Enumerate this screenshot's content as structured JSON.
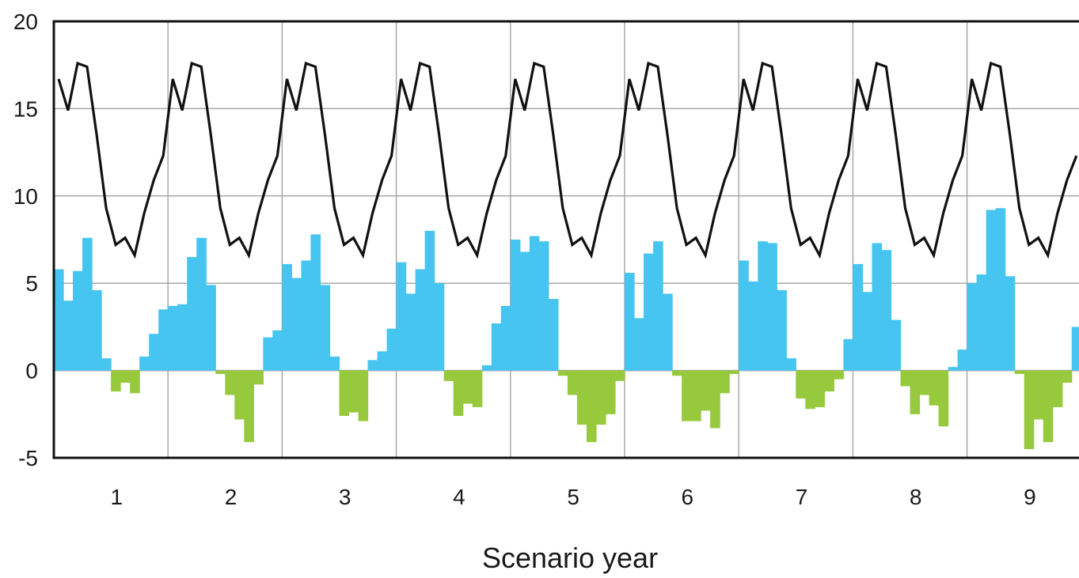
{
  "chart_data": {
    "type": "bar",
    "xlabel": "Scenario year",
    "ylabel": "",
    "ylim": [
      -5,
      20
    ],
    "yticks": [
      20,
      15,
      10,
      5,
      0,
      -5
    ],
    "years": [
      "1",
      "2",
      "3",
      "4",
      "5",
      "6",
      "7",
      "8",
      "9"
    ],
    "grid": true,
    "colors": {
      "positive": "#45c5f0",
      "negative": "#97c93d",
      "line": "#111111",
      "grid": "#a8a8a8",
      "frame": "#111111"
    },
    "monthly_bars": [
      [
        5.8,
        4.0,
        5.7,
        7.6,
        4.6,
        0.7,
        -1.2,
        -0.7,
        -1.3,
        0.8,
        2.1,
        3.5
      ],
      [
        3.7,
        3.8,
        6.5,
        7.6,
        4.9,
        -0.2,
        -1.4,
        -2.8,
        -4.1,
        -0.8,
        1.9,
        2.3
      ],
      [
        6.1,
        5.3,
        6.3,
        7.8,
        4.9,
        0.8,
        -2.6,
        -2.4,
        -2.9,
        0.6,
        1.1,
        2.4
      ],
      [
        6.2,
        4.4,
        5.8,
        8.0,
        5.0,
        -0.6,
        -2.6,
        -1.9,
        -2.1,
        0.3,
        2.7,
        3.7
      ],
      [
        7.5,
        6.8,
        7.7,
        7.4,
        4.1,
        -0.3,
        -1.4,
        -3.1,
        -4.1,
        -3.1,
        -2.5,
        -0.6
      ],
      [
        5.6,
        3.0,
        6.7,
        7.4,
        4.4,
        -0.3,
        -2.9,
        -2.9,
        -2.3,
        -3.3,
        -1.3,
        -0.2
      ],
      [
        6.3,
        5.1,
        7.4,
        7.3,
        4.6,
        0.7,
        -1.6,
        -2.2,
        -2.1,
        -1.2,
        -0.5,
        1.8
      ],
      [
        6.1,
        4.5,
        7.3,
        6.9,
        2.9,
        -0.9,
        -2.5,
        -1.4,
        -2.0,
        -3.2,
        0.2,
        1.2
      ],
      [
        5.0,
        5.5,
        9.2,
        9.3,
        5.4,
        -0.2,
        -4.5,
        -2.8,
        -4.1,
        -2.1,
        -0.7,
        2.5
      ]
    ],
    "line_cycle": [
      16.7,
      14.9,
      17.6,
      17.4,
      13.5,
      9.3,
      7.2,
      7.6,
      6.6,
      9.0,
      10.9,
      12.3
    ]
  }
}
